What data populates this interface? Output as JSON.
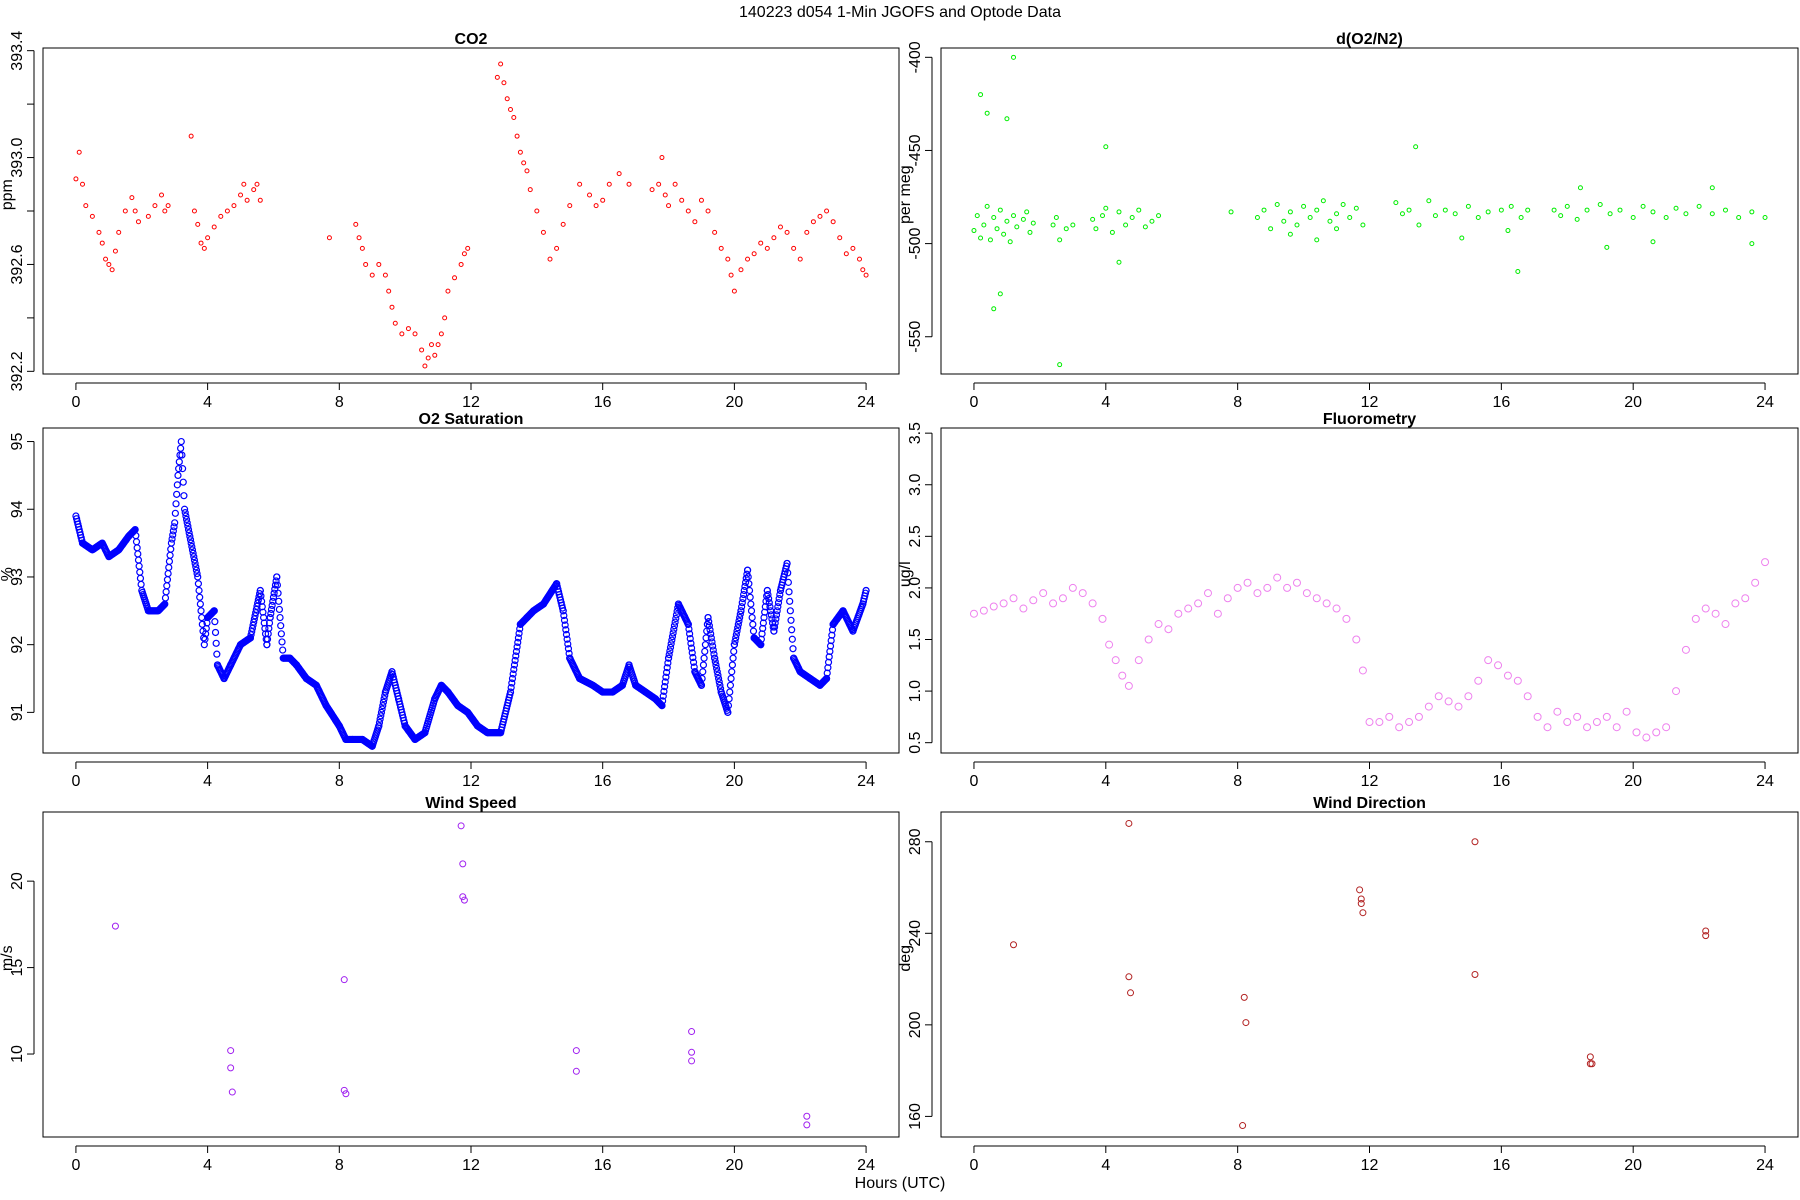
{
  "suptitle": "140223   d054   1-Min  JGOFS and Optode Data",
  "xlabel": "Hours (UTC)",
  "chart_data": [
    {
      "id": "co2",
      "type": "scatter",
      "title": "CO2",
      "ylabel": "ppm",
      "color": "#ff0000",
      "xlim": [
        -1,
        25
      ],
      "ylim": [
        392.19,
        393.41
      ],
      "yticks": [
        392.2,
        392.6,
        393.0,
        393.4
      ],
      "ytick_labels": [
        "392.2",
        "392.6",
        "393.0",
        "393.4"
      ],
      "yticks_minor": [
        392.4,
        392.8,
        393.2
      ],
      "xticks": [
        0,
        4,
        8,
        12,
        16,
        20,
        24
      ],
      "series": [
        {
          "x": [
            0,
            0.1,
            0.2,
            0.3,
            0.5,
            0.7,
            0.8,
            0.9,
            1.0,
            1.1,
            1.2,
            1.3,
            1.5,
            1.7,
            1.8,
            1.9,
            2.2,
            2.4,
            2.6,
            2.7,
            2.8,
            3.5,
            3.6,
            3.7,
            3.8,
            3.9,
            4.0,
            4.2,
            4.4,
            4.6,
            4.8,
            5.0,
            5.1,
            5.2,
            5.4,
            5.5,
            5.6,
            7.7,
            8.5,
            8.6,
            8.7,
            8.8,
            9.0,
            9.2,
            9.4,
            9.5,
            9.6,
            9.7,
            9.9,
            10.1,
            10.3,
            10.5,
            10.6,
            10.7,
            10.8,
            10.9,
            11.0,
            11.1,
            11.2,
            11.3,
            11.5,
            11.7,
            11.8,
            11.9,
            12.8,
            12.9,
            13.0,
            13.1,
            13.2,
            13.3,
            13.4,
            13.5,
            13.6,
            13.7,
            13.8,
            14.0,
            14.2,
            14.4,
            14.6,
            14.8,
            15.0,
            15.3,
            15.6,
            15.8,
            16.0,
            16.2,
            16.5,
            16.8,
            17.5,
            17.7,
            17.8,
            17.9,
            18.0,
            18.2,
            18.4,
            18.6,
            18.8,
            19.0,
            19.2,
            19.4,
            19.6,
            19.8,
            19.9,
            20.0,
            20.2,
            20.4,
            20.6,
            20.8,
            21.0,
            21.2,
            21.4,
            21.6,
            21.8,
            22.0,
            22.2,
            22.4,
            22.6,
            22.8,
            23.0,
            23.2,
            23.4,
            23.6,
            23.8,
            23.9,
            24.0
          ],
          "y": [
            392.92,
            393.02,
            392.9,
            392.82,
            392.78,
            392.72,
            392.68,
            392.62,
            392.6,
            392.58,
            392.65,
            392.72,
            392.8,
            392.85,
            392.8,
            392.76,
            392.78,
            392.82,
            392.86,
            392.8,
            392.82,
            393.08,
            392.8,
            392.75,
            392.68,
            392.66,
            392.7,
            392.74,
            392.78,
            392.8,
            392.82,
            392.86,
            392.9,
            392.84,
            392.88,
            392.9,
            392.84,
            392.7,
            392.75,
            392.7,
            392.66,
            392.6,
            392.56,
            392.6,
            392.56,
            392.5,
            392.44,
            392.38,
            392.34,
            392.36,
            392.34,
            392.28,
            392.22,
            392.25,
            392.3,
            392.26,
            392.3,
            392.34,
            392.4,
            392.5,
            392.55,
            392.6,
            392.64,
            392.66,
            393.3,
            393.35,
            393.28,
            393.22,
            393.18,
            393.15,
            393.08,
            393.02,
            392.98,
            392.95,
            392.88,
            392.8,
            392.72,
            392.62,
            392.66,
            392.75,
            392.82,
            392.9,
            392.86,
            392.82,
            392.84,
            392.9,
            392.94,
            392.9,
            392.88,
            392.9,
            393.0,
            392.86,
            392.82,
            392.9,
            392.84,
            392.8,
            392.76,
            392.84,
            392.8,
            392.72,
            392.66,
            392.62,
            392.56,
            392.5,
            392.58,
            392.62,
            392.64,
            392.68,
            392.66,
            392.7,
            392.74,
            392.72,
            392.66,
            392.62,
            392.72,
            392.76,
            392.78,
            392.8,
            392.76,
            392.7,
            392.64,
            392.66,
            392.62,
            392.58,
            392.56
          ]
        }
      ]
    },
    {
      "id": "o2n2",
      "type": "scatter",
      "title": "d(O2/N2)",
      "ylabel": "per meg",
      "color": "#00ee00",
      "xlim": [
        -1,
        25
      ],
      "ylim": [
        -570,
        -395
      ],
      "yticks": [
        -550,
        -500,
        -450,
        -400
      ],
      "ytick_labels": [
        "-550",
        "-500",
        "-450",
        "-400"
      ],
      "xticks": [
        0,
        4,
        8,
        12,
        16,
        20,
        24
      ],
      "series": [
        {
          "name": "",
          "x": [
            0,
            0.1,
            0.2,
            0.3,
            0.4,
            0.5,
            0.6,
            0.7,
            0.8,
            0.9,
            1.0,
            1.1,
            1.2,
            1.3,
            1.5,
            1.6,
            1.7,
            1.8,
            2.4,
            2.5,
            2.6,
            2.8,
            3.0,
            3.6,
            3.7,
            3.9,
            4.0,
            4.2,
            4.4,
            4.6,
            4.8,
            5.0,
            5.2,
            5.4,
            5.6,
            7.8,
            8.6,
            8.8,
            9.0,
            9.2,
            9.4,
            9.6,
            9.8,
            10.0,
            10.2,
            10.4,
            10.6,
            10.8,
            11.0,
            11.2,
            11.4,
            11.6,
            11.8,
            12.8,
            13.0,
            13.2,
            13.5,
            13.8,
            14.0,
            14.3,
            14.6,
            15.0,
            15.3,
            15.6,
            16.0,
            16.3,
            16.6,
            16.8,
            17.6,
            17.8,
            18.0,
            18.3,
            18.6,
            19.0,
            19.3,
            19.6,
            20.0,
            20.3,
            20.6,
            21.0,
            21.3,
            21.6,
            22.0,
            22.4,
            22.8,
            23.2,
            23.6,
            24.0
          ],
          "y": [
            -493,
            -485,
            -497,
            -490,
            -480,
            -498,
            -486,
            -492,
            -482,
            -495,
            -488,
            -499,
            -485,
            -491,
            -487,
            -483,
            -494,
            -489,
            -490,
            -486,
            -498,
            -492,
            -490,
            -487,
            -492,
            -485,
            -481,
            -494,
            -483,
            -490,
            -486,
            -482,
            -491,
            -488,
            -485,
            -483,
            -486,
            -482,
            -492,
            -479,
            -488,
            -483,
            -490,
            -480,
            -486,
            -482,
            -477,
            -488,
            -484,
            -479,
            -486,
            -481,
            -490,
            -478,
            -484,
            -482,
            -490,
            -477,
            -485,
            -482,
            -484,
            -480,
            -486,
            -483,
            -482,
            -480,
            -486,
            -482,
            -482,
            -485,
            -480,
            -487,
            -482,
            -479,
            -484,
            -482,
            -486,
            -480,
            -483,
            -486,
            -481,
            -484,
            -480,
            -484,
            -482,
            -486,
            -483,
            -486
          ]
        },
        {
          "name": "",
          "x": [
            0.2,
            0.4,
            0.6,
            0.8,
            1.0,
            1.2,
            2.6,
            4.0,
            4.4,
            9.6,
            10.4,
            11.0,
            13.4,
            14.8,
            16.2,
            16.5,
            18.4,
            19.2,
            20.6,
            22.4,
            23.6
          ],
          "y": [
            -420,
            -430,
            -535,
            -527,
            -433,
            -400,
            -565,
            -448,
            -510,
            -495,
            -498,
            -492,
            -448,
            -497,
            -493,
            -515,
            -470,
            -502,
            -499,
            -470,
            -500
          ]
        }
      ]
    },
    {
      "id": "o2sat",
      "type": "line",
      "title": "O2 Saturation",
      "ylabel": "%",
      "color": "#0000ff",
      "xlim": [
        -1,
        25
      ],
      "ylim": [
        90.4,
        95.2
      ],
      "yticks": [
        91,
        92,
        93,
        94,
        95
      ],
      "ytick_labels": [
        "91",
        "92",
        "93",
        "94",
        "95"
      ],
      "xticks": [
        0,
        4,
        8,
        12,
        16,
        20,
        24
      ],
      "x": [
        0,
        0.2,
        0.5,
        0.8,
        1.0,
        1.3,
        1.6,
        1.8,
        2.0,
        2.2,
        2.5,
        2.7,
        2.9,
        3.0,
        3.1,
        3.2,
        3.3,
        3.5,
        3.7,
        3.9,
        4.0,
        4.2,
        4.3,
        4.5,
        4.7,
        5.0,
        5.3,
        5.6,
        5.8,
        5.9,
        6.1,
        6.3,
        6.5,
        6.7,
        7.0,
        7.3,
        7.6,
        8.0,
        8.2,
        8.4,
        8.7,
        9.0,
        9.2,
        9.4,
        9.6,
        9.8,
        10.0,
        10.3,
        10.6,
        10.9,
        11.1,
        11.3,
        11.6,
        11.9,
        12.2,
        12.5,
        12.9,
        13.2,
        13.5,
        13.7,
        13.9,
        14.2,
        14.6,
        14.8,
        15.0,
        15.3,
        15.7,
        16.0,
        16.3,
        16.6,
        16.8,
        17.0,
        17.3,
        17.6,
        17.8,
        18.0,
        18.3,
        18.6,
        18.8,
        19.0,
        19.2,
        19.4,
        19.6,
        19.8,
        20.0,
        20.2,
        20.4,
        20.6,
        20.8,
        21.0,
        21.2,
        21.4,
        21.6,
        21.8,
        22.0,
        22.3,
        22.6,
        22.8,
        23.0,
        23.3,
        23.6,
        23.9,
        24.0
      ],
      "y": [
        93.9,
        93.5,
        93.4,
        93.5,
        93.3,
        93.4,
        93.6,
        93.7,
        92.8,
        92.5,
        92.5,
        92.6,
        93.5,
        93.8,
        94.5,
        95.0,
        94.0,
        93.5,
        93.0,
        92.0,
        92.4,
        92.5,
        91.7,
        91.5,
        91.7,
        92.0,
        92.1,
        92.8,
        92.0,
        92.4,
        93.0,
        91.8,
        91.8,
        91.7,
        91.5,
        91.4,
        91.1,
        90.8,
        90.6,
        90.6,
        90.6,
        90.5,
        90.8,
        91.3,
        91.6,
        91.2,
        90.8,
        90.6,
        90.7,
        91.2,
        91.4,
        91.3,
        91.1,
        91.0,
        90.8,
        90.7,
        90.7,
        91.3,
        92.3,
        92.4,
        92.5,
        92.6,
        92.9,
        92.5,
        91.8,
        91.5,
        91.4,
        91.3,
        91.3,
        91.4,
        91.7,
        91.4,
        91.3,
        91.2,
        91.1,
        91.8,
        92.6,
        92.3,
        91.6,
        91.4,
        92.4,
        91.8,
        91.3,
        91.0,
        92.0,
        92.5,
        93.1,
        92.1,
        92.0,
        92.8,
        92.2,
        92.8,
        93.2,
        91.8,
        91.6,
        91.5,
        91.4,
        91.5,
        92.3,
        92.5,
        92.2,
        92.6,
        92.8
      ]
    },
    {
      "id": "fluor",
      "type": "scatter",
      "title": "Fluorometry",
      "ylabel": "ug/l",
      "color": "#ee82ee",
      "xlim": [
        -1,
        25
      ],
      "ylim": [
        0.4,
        3.55
      ],
      "yticks": [
        0.5,
        1.0,
        1.5,
        2.0,
        2.5,
        3.0,
        3.5
      ],
      "ytick_labels": [
        "0.5",
        "1.0",
        "1.5",
        "2.0",
        "2.5",
        "3.0",
        "3.5"
      ],
      "xticks": [
        0,
        4,
        8,
        12,
        16,
        20,
        24
      ],
      "x": [
        0,
        0.3,
        0.6,
        0.9,
        1.2,
        1.5,
        1.8,
        2.1,
        2.4,
        2.7,
        3.0,
        3.3,
        3.6,
        3.9,
        4.1,
        4.3,
        4.5,
        4.7,
        5.0,
        5.3,
        5.6,
        5.9,
        6.2,
        6.5,
        6.8,
        7.1,
        7.4,
        7.7,
        8.0,
        8.3,
        8.6,
        8.9,
        9.2,
        9.5,
        9.8,
        10.1,
        10.4,
        10.7,
        11.0,
        11.3,
        11.6,
        11.8,
        12.0,
        12.3,
        12.6,
        12.9,
        13.2,
        13.5,
        13.8,
        14.1,
        14.4,
        14.7,
        15.0,
        15.3,
        15.6,
        15.9,
        16.2,
        16.5,
        16.8,
        17.1,
        17.4,
        17.7,
        18.0,
        18.3,
        18.6,
        18.9,
        19.2,
        19.5,
        19.8,
        20.1,
        20.4,
        20.7,
        21.0,
        21.3,
        21.6,
        21.9,
        22.2,
        22.5,
        22.8,
        23.1,
        23.4,
        23.7,
        24.0
      ],
      "y": [
        1.75,
        1.78,
        1.82,
        1.85,
        1.9,
        1.8,
        1.88,
        1.95,
        1.85,
        1.9,
        2.0,
        1.95,
        1.85,
        1.7,
        1.45,
        1.3,
        1.15,
        1.05,
        1.3,
        1.5,
        1.65,
        1.6,
        1.75,
        1.8,
        1.85,
        1.95,
        1.75,
        1.9,
        2.0,
        2.05,
        1.95,
        2.0,
        2.1,
        2.0,
        2.05,
        1.95,
        1.9,
        1.85,
        1.8,
        1.7,
        1.5,
        1.2,
        0.7,
        0.7,
        0.75,
        0.65,
        0.7,
        0.75,
        0.85,
        0.95,
        0.9,
        0.85,
        0.95,
        1.1,
        1.3,
        1.25,
        1.15,
        1.1,
        0.95,
        0.75,
        0.65,
        0.8,
        0.7,
        0.75,
        0.65,
        0.7,
        0.75,
        0.65,
        0.8,
        0.6,
        0.55,
        0.6,
        0.65,
        1.0,
        1.4,
        1.7,
        1.8,
        1.75,
        1.65,
        1.85,
        1.9,
        2.05,
        2.25
      ]
    },
    {
      "id": "wspd",
      "type": "scatter",
      "title": "Wind Speed",
      "ylabel": "m/s",
      "color": "#a020f0",
      "xlim": [
        -1,
        25
      ],
      "ylim": [
        5.2,
        24.0
      ],
      "yticks": [
        10,
        15,
        20
      ],
      "ytick_labels": [
        "10",
        "15",
        "20"
      ],
      "xticks": [
        0,
        4,
        8,
        12,
        16,
        20,
        24
      ],
      "x": [
        1.2,
        4.7,
        4.7,
        4.75,
        8.15,
        8.15,
        8.2,
        11.7,
        11.75,
        11.75,
        11.8,
        15.2,
        15.2,
        18.7,
        18.7,
        18.7,
        22.2,
        22.2
      ],
      "y": [
        17.4,
        10.2,
        9.2,
        7.8,
        14.3,
        7.9,
        7.7,
        23.2,
        21.0,
        19.1,
        18.9,
        10.2,
        9.0,
        11.3,
        10.1,
        9.6,
        6.4,
        5.9
      ]
    },
    {
      "id": "wdir",
      "type": "scatter",
      "title": "Wind Direction",
      "ylabel": "deg",
      "color": "#b22222",
      "xlim": [
        -1,
        25
      ],
      "ylim": [
        151,
        293
      ],
      "yticks": [
        160,
        200,
        240,
        280
      ],
      "ytick_labels": [
        "160",
        "200",
        "240",
        "280"
      ],
      "xticks": [
        0,
        4,
        8,
        12,
        16,
        20,
        24
      ],
      "x": [
        1.2,
        4.7,
        4.7,
        4.75,
        8.15,
        8.2,
        8.25,
        11.7,
        11.75,
        11.75,
        11.8,
        15.2,
        15.2,
        18.7,
        18.7,
        18.75,
        22.2,
        22.2
      ],
      "y": [
        235,
        288,
        221,
        214,
        156,
        212,
        201,
        259,
        255,
        253,
        249,
        280,
        222,
        186,
        183,
        183,
        241,
        239
      ]
    }
  ]
}
